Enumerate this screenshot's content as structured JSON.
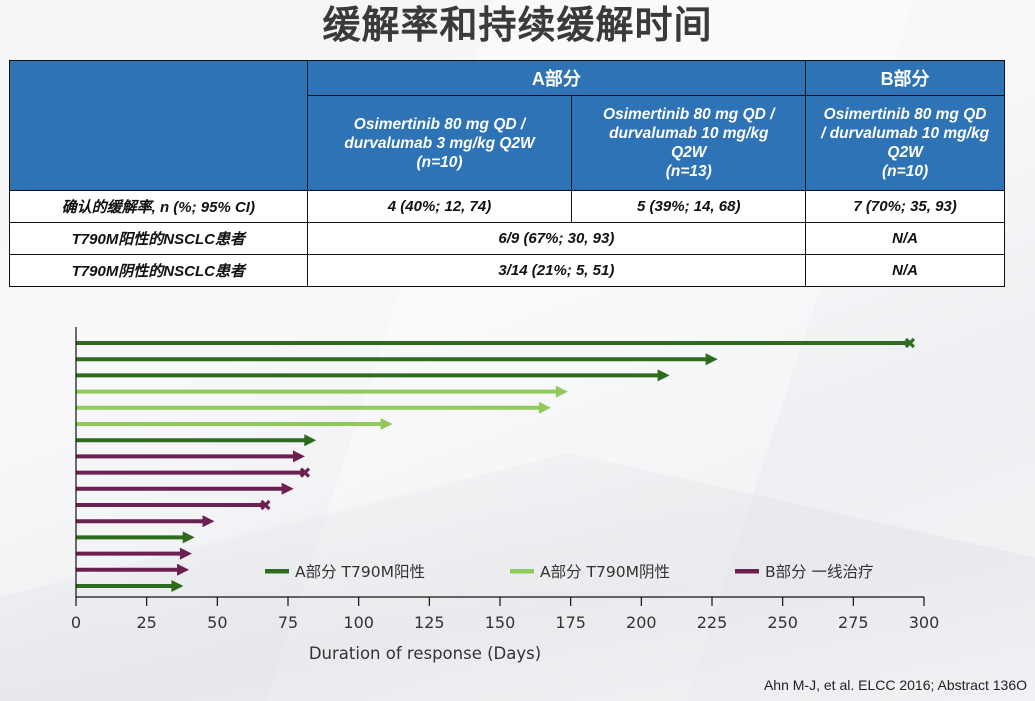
{
  "title": "缓解率和持续缓解时间",
  "table": {
    "part_a_label": "A部分",
    "part_b_label": "B部分",
    "arms": [
      {
        "line1": "Osimertinib 80 mg QD /",
        "line2": "durvalumab 3 mg/kg Q2W",
        "line3": "",
        "n": "(n=10)"
      },
      {
        "line1": "Osimertinib 80 mg QD /",
        "line2": "durvalumab 10 mg/kg",
        "line3": "Q2W",
        "n": "(n=13)"
      },
      {
        "line1": "Osimertinib 80 mg QD",
        "line2": "/ durvalumab 10 mg/kg",
        "line3": "Q2W",
        "n": "(n=10)"
      }
    ],
    "rows": [
      {
        "label": "确认的缓解率, n (%; 95% CI)",
        "cells": [
          "4 (40%; 12, 74)",
          "5 (39%; 14, 68)",
          "7 (70%; 35, 93)"
        ]
      },
      {
        "label": "T790M阳性的NSCLC患者",
        "cells": [
          "6/9 (67%; 30, 93)",
          "N/A"
        ]
      },
      {
        "label": "T790M阴性的NSCLC患者",
        "cells": [
          "3/14 (21%; 5, 51)",
          "N/A"
        ]
      }
    ]
  },
  "chart_data": {
    "type": "bar",
    "orientation": "horizontal",
    "title": "",
    "xlabel": "Duration of response (Days)",
    "ylabel": "",
    "xlim": [
      0,
      300
    ],
    "xticks": [
      0,
      25,
      50,
      75,
      100,
      125,
      150,
      175,
      200,
      225,
      250,
      275,
      300
    ],
    "grid": false,
    "legend_position": "bottom-inside",
    "series": [
      {
        "name": "A部分 T790M阳性",
        "color": "#2e6b1f"
      },
      {
        "name": "A部分 T790M阴性",
        "color": "#8fca5a"
      },
      {
        "name": "B部分  一线治疗",
        "color": "#6b2150"
      }
    ],
    "markers": {
      "ongoing": "arrow",
      "ended": "x"
    },
    "bars": [
      {
        "series": 0,
        "days": 295,
        "status": "ended"
      },
      {
        "series": 0,
        "days": 227,
        "status": "ongoing"
      },
      {
        "series": 0,
        "days": 210,
        "status": "ongoing"
      },
      {
        "series": 1,
        "days": 174,
        "status": "ongoing"
      },
      {
        "series": 1,
        "days": 168,
        "status": "ongoing"
      },
      {
        "series": 1,
        "days": 112,
        "status": "ongoing"
      },
      {
        "series": 0,
        "days": 85,
        "status": "ongoing"
      },
      {
        "series": 2,
        "days": 81,
        "status": "ongoing"
      },
      {
        "series": 2,
        "days": 81,
        "status": "ended"
      },
      {
        "series": 2,
        "days": 77,
        "status": "ongoing"
      },
      {
        "series": 2,
        "days": 67,
        "status": "ended"
      },
      {
        "series": 2,
        "days": 49,
        "status": "ongoing"
      },
      {
        "series": 0,
        "days": 42,
        "status": "ongoing"
      },
      {
        "series": 2,
        "days": 41,
        "status": "ongoing"
      },
      {
        "series": 2,
        "days": 40,
        "status": "ongoing"
      },
      {
        "series": 0,
        "days": 38,
        "status": "ongoing"
      }
    ]
  },
  "citation": "Ahn M-J, et al. ELCC 2016; Abstract 136O"
}
